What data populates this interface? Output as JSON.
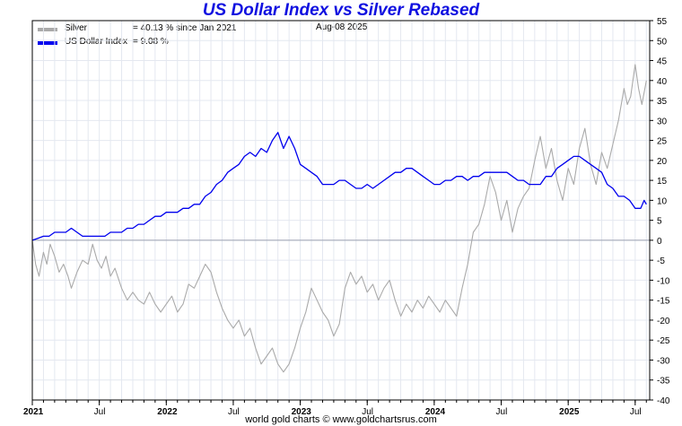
{
  "chart_data": {
    "type": "line",
    "title": "US Dollar Index vs Silver Rebased",
    "date": "Aug-08  2025",
    "footer": "world gold charts © www.goldchartsrus.com",
    "ylim": [
      -40,
      55
    ],
    "ytick_step": 5,
    "x_range_months": [
      0,
      55.3
    ],
    "x_ticks": [
      {
        "label": "2021",
        "month": 0
      },
      {
        "label": "Jul",
        "month": 6
      },
      {
        "label": "2022",
        "month": 12
      },
      {
        "label": "Jul",
        "month": 18
      },
      {
        "label": "2023",
        "month": 24
      },
      {
        "label": "Jul",
        "month": 30
      },
      {
        "label": "2024",
        "month": 36
      },
      {
        "label": "Jul",
        "month": 42
      },
      {
        "label": "2025",
        "month": 48
      },
      {
        "label": "Jul",
        "month": 54
      }
    ],
    "series": [
      {
        "name": "Silver",
        "legend_label": "Silver",
        "legend_value": "= 40.13 % since Jan 2021",
        "color": "#aaaaaa",
        "points": [
          [
            0,
            0
          ],
          [
            0.3,
            -6
          ],
          [
            0.6,
            -9
          ],
          [
            1,
            -3
          ],
          [
            1.3,
            -6
          ],
          [
            1.6,
            -1
          ],
          [
            2,
            -4
          ],
          [
            2.4,
            -8
          ],
          [
            2.8,
            -6
          ],
          [
            3.2,
            -9
          ],
          [
            3.5,
            -12
          ],
          [
            4,
            -8
          ],
          [
            4.5,
            -5
          ],
          [
            5,
            -6
          ],
          [
            5.4,
            -1
          ],
          [
            5.8,
            -5
          ],
          [
            6.2,
            -7
          ],
          [
            6.6,
            -4
          ],
          [
            7,
            -9
          ],
          [
            7.4,
            -7
          ],
          [
            8,
            -12
          ],
          [
            8.5,
            -15
          ],
          [
            9,
            -13
          ],
          [
            9.5,
            -15
          ],
          [
            10,
            -16
          ],
          [
            10.5,
            -13
          ],
          [
            11,
            -16
          ],
          [
            11.5,
            -18
          ],
          [
            12,
            -16
          ],
          [
            12.5,
            -14
          ],
          [
            13,
            -18
          ],
          [
            13.5,
            -16
          ],
          [
            14,
            -11
          ],
          [
            14.5,
            -12
          ],
          [
            15,
            -9
          ],
          [
            15.5,
            -6
          ],
          [
            16,
            -8
          ],
          [
            16.5,
            -13
          ],
          [
            17,
            -17
          ],
          [
            17.5,
            -20
          ],
          [
            18,
            -22
          ],
          [
            18.5,
            -20
          ],
          [
            19,
            -24
          ],
          [
            19.5,
            -22
          ],
          [
            20,
            -27
          ],
          [
            20.5,
            -31
          ],
          [
            21,
            -29
          ],
          [
            21.5,
            -27
          ],
          [
            22,
            -31
          ],
          [
            22.5,
            -33
          ],
          [
            23,
            -31
          ],
          [
            23.5,
            -27
          ],
          [
            24,
            -22
          ],
          [
            24.5,
            -18
          ],
          [
            25,
            -12
          ],
          [
            25.5,
            -15
          ],
          [
            26,
            -18
          ],
          [
            26.5,
            -20
          ],
          [
            27,
            -24
          ],
          [
            27.5,
            -21
          ],
          [
            28,
            -12
          ],
          [
            28.5,
            -8
          ],
          [
            29,
            -11
          ],
          [
            29.5,
            -9
          ],
          [
            30,
            -13
          ],
          [
            30.5,
            -11
          ],
          [
            31,
            -15
          ],
          [
            31.5,
            -12
          ],
          [
            32,
            -10
          ],
          [
            32.5,
            -15
          ],
          [
            33,
            -19
          ],
          [
            33.5,
            -16
          ],
          [
            34,
            -18
          ],
          [
            34.5,
            -15
          ],
          [
            35,
            -17
          ],
          [
            35.5,
            -14
          ],
          [
            36,
            -16
          ],
          [
            36.5,
            -18
          ],
          [
            37,
            -15
          ],
          [
            37.5,
            -17
          ],
          [
            38,
            -19
          ],
          [
            38.5,
            -12
          ],
          [
            39,
            -6
          ],
          [
            39.5,
            2
          ],
          [
            40,
            4
          ],
          [
            40.5,
            9
          ],
          [
            41,
            16
          ],
          [
            41.5,
            12
          ],
          [
            42,
            5
          ],
          [
            42.5,
            10
          ],
          [
            43,
            2
          ],
          [
            43.5,
            8
          ],
          [
            44,
            11
          ],
          [
            44.5,
            13
          ],
          [
            45,
            20
          ],
          [
            45.5,
            26
          ],
          [
            46,
            18
          ],
          [
            46.5,
            23
          ],
          [
            47,
            15
          ],
          [
            47.5,
            10
          ],
          [
            48,
            18
          ],
          [
            48.5,
            14
          ],
          [
            49,
            23
          ],
          [
            49.5,
            28
          ],
          [
            50,
            19
          ],
          [
            50.5,
            14
          ],
          [
            51,
            22
          ],
          [
            51.5,
            18
          ],
          [
            52,
            24
          ],
          [
            52.5,
            30
          ],
          [
            53,
            38
          ],
          [
            53.3,
            34
          ],
          [
            53.6,
            36
          ],
          [
            54,
            44
          ],
          [
            54.3,
            38
          ],
          [
            54.6,
            34
          ],
          [
            55,
            40
          ]
        ]
      },
      {
        "name": "US Dollar Index",
        "legend_label": "US Dollar Index",
        "legend_value": "= 9.08 %",
        "color": "#0000ee",
        "points": [
          [
            0,
            0
          ],
          [
            0.5,
            0.5
          ],
          [
            1,
            1
          ],
          [
            1.5,
            1
          ],
          [
            2,
            2
          ],
          [
            2.5,
            2
          ],
          [
            3,
            2
          ],
          [
            3.5,
            3
          ],
          [
            4,
            2
          ],
          [
            4.5,
            1
          ],
          [
            5,
            1
          ],
          [
            5.5,
            1
          ],
          [
            6,
            1
          ],
          [
            6.5,
            1
          ],
          [
            7,
            2
          ],
          [
            7.5,
            2
          ],
          [
            8,
            2
          ],
          [
            8.5,
            3
          ],
          [
            9,
            3
          ],
          [
            9.5,
            4
          ],
          [
            10,
            4
          ],
          [
            10.5,
            5
          ],
          [
            11,
            6
          ],
          [
            11.5,
            6
          ],
          [
            12,
            7
          ],
          [
            12.5,
            7
          ],
          [
            13,
            7
          ],
          [
            13.5,
            8
          ],
          [
            14,
            8
          ],
          [
            14.5,
            9
          ],
          [
            15,
            9
          ],
          [
            15.5,
            11
          ],
          [
            16,
            12
          ],
          [
            16.5,
            14
          ],
          [
            17,
            15
          ],
          [
            17.5,
            17
          ],
          [
            18,
            18
          ],
          [
            18.5,
            19
          ],
          [
            19,
            21
          ],
          [
            19.5,
            22
          ],
          [
            20,
            21
          ],
          [
            20.5,
            23
          ],
          [
            21,
            22
          ],
          [
            21.5,
            25
          ],
          [
            22,
            27
          ],
          [
            22.5,
            23
          ],
          [
            23,
            26
          ],
          [
            23.5,
            23
          ],
          [
            24,
            19
          ],
          [
            24.5,
            18
          ],
          [
            25,
            17
          ],
          [
            25.5,
            16
          ],
          [
            26,
            14
          ],
          [
            26.5,
            14
          ],
          [
            27,
            14
          ],
          [
            27.5,
            15
          ],
          [
            28,
            15
          ],
          [
            28.5,
            14
          ],
          [
            29,
            13
          ],
          [
            29.5,
            13
          ],
          [
            30,
            14
          ],
          [
            30.5,
            13
          ],
          [
            31,
            14
          ],
          [
            31.5,
            15
          ],
          [
            32,
            16
          ],
          [
            32.5,
            17
          ],
          [
            33,
            17
          ],
          [
            33.5,
            18
          ],
          [
            34,
            18
          ],
          [
            34.5,
            17
          ],
          [
            35,
            16
          ],
          [
            35.5,
            15
          ],
          [
            36,
            14
          ],
          [
            36.5,
            14
          ],
          [
            37,
            15
          ],
          [
            37.5,
            15
          ],
          [
            38,
            16
          ],
          [
            38.5,
            16
          ],
          [
            39,
            15
          ],
          [
            39.5,
            16
          ],
          [
            40,
            16
          ],
          [
            40.5,
            17
          ],
          [
            41,
            17
          ],
          [
            41.5,
            17
          ],
          [
            42,
            17
          ],
          [
            42.5,
            17
          ],
          [
            43,
            16
          ],
          [
            43.5,
            15
          ],
          [
            44,
            15
          ],
          [
            44.5,
            14
          ],
          [
            45,
            14
          ],
          [
            45.5,
            14
          ],
          [
            46,
            16
          ],
          [
            46.5,
            16
          ],
          [
            47,
            18
          ],
          [
            47.5,
            19
          ],
          [
            48,
            20
          ],
          [
            48.5,
            21
          ],
          [
            49,
            21
          ],
          [
            49.5,
            20
          ],
          [
            50,
            19
          ],
          [
            50.5,
            18
          ],
          [
            51,
            17
          ],
          [
            51.5,
            14
          ],
          [
            52,
            13
          ],
          [
            52.5,
            11
          ],
          [
            53,
            11
          ],
          [
            53.5,
            10
          ],
          [
            54,
            8
          ],
          [
            54.5,
            8
          ],
          [
            54.8,
            10
          ],
          [
            55,
            9
          ]
        ]
      }
    ]
  }
}
